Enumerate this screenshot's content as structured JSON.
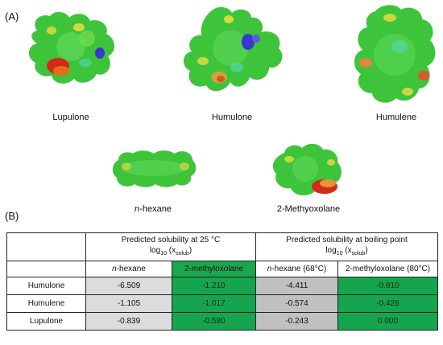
{
  "figure": {
    "panel_a": "(A)",
    "panel_b": "(B)"
  },
  "molecules": {
    "lupulone": "Lupulone",
    "humulone": "Humulone",
    "humulene": "Humulene",
    "hexane_italic": "n",
    "hexane_rest": "-hexane",
    "methyloxolane": "2-Methyoxolane"
  },
  "table": {
    "group1": {
      "title": "Predicted solubility at 25 °C",
      "unit_pre": "log",
      "unit_sub1": "10",
      "unit_mid": " (x",
      "unit_sub2": "solub",
      "unit_post": ")"
    },
    "group2": {
      "title": "Predicted solubility at boiling point",
      "unit_pre": "log",
      "unit_sub1": "10",
      "unit_mid": " (x",
      "unit_sub2": "solub",
      "unit_post": ")"
    },
    "subheaders": {
      "hex25_italic": "n",
      "hex25_rest": "-hexane",
      "mox25": "2-methyloxolane",
      "hexbp_italic": "n",
      "hexbp_rest": "-hexane (68°C)",
      "moxbp": "2-methyloxolane (80°C)"
    },
    "rows": [
      {
        "label": "Humulone",
        "hex25": "-6.509",
        "mox25": "-1.210",
        "hexbp": "-4.411",
        "moxbp": "-0.810"
      },
      {
        "label": "Humulene",
        "hex25": "-1.105",
        "mox25": "-1.017",
        "hexbp": "-0.574",
        "moxbp": "-0.428"
      },
      {
        "label": "Lupulone",
        "hex25": "-0.839",
        "mox25": "-0.580",
        "hexbp": "-0.243",
        "moxbp": "0.000"
      }
    ]
  },
  "colors": {
    "surface_green": "#3ec43a",
    "surface_yellow": "#d8d83a",
    "surface_red": "#d42a1a",
    "surface_blue": "#3a38d0",
    "cell_green": "#14a54e",
    "cell_grey_light": "#dcdcdc",
    "cell_grey_dark": "#c0c0c0"
  }
}
